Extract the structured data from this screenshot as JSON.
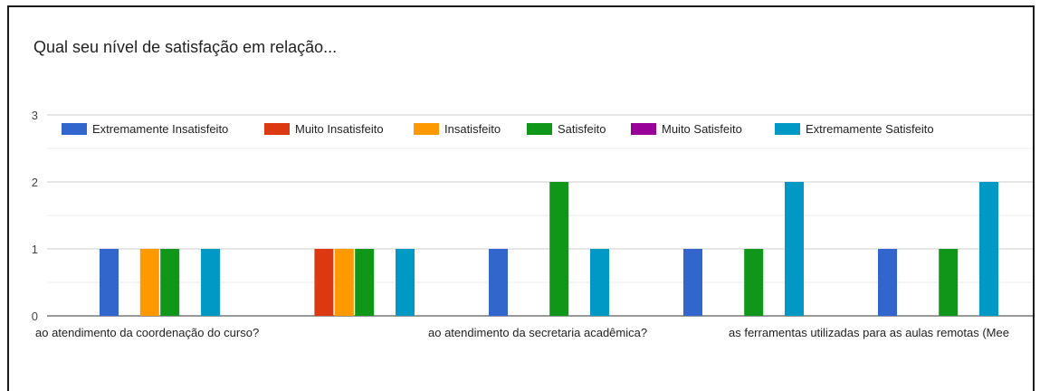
{
  "chart_data": {
    "type": "bar",
    "title": "Qual seu nível de satisfação em relação...",
    "xlabel": "",
    "ylabel": "",
    "ylim": [
      0,
      3
    ],
    "yticks": [
      0,
      1,
      2,
      3
    ],
    "grid": true,
    "legend_position": "top",
    "categories": [
      "ao atendimento da coordenação do curso?",
      "",
      "ao atendimento da secretaria acadêmica?",
      "",
      "as ferramentas utilizadas para as aulas remotas (Meet, Classroom...)?"
    ],
    "category_labels_visible": [
      "ao atendimento da coordenação do curso?",
      "ao atendimento da secretaria acadêmica?",
      "as ferramentas utilizadas para as aulas remotas (Mee"
    ],
    "series": [
      {
        "name": "Extremamente Insatisfeito",
        "color": "#3366cc",
        "values": [
          1,
          0,
          1,
          1,
          1
        ]
      },
      {
        "name": "Muito Insatisfeito",
        "color": "#dc3912",
        "values": [
          0,
          1,
          0,
          0,
          0
        ]
      },
      {
        "name": "Insatisfeito",
        "color": "#ff9900",
        "values": [
          1,
          1,
          0,
          0,
          0
        ]
      },
      {
        "name": "Satisfeito",
        "color": "#109618",
        "values": [
          1,
          1,
          2,
          1,
          1
        ]
      },
      {
        "name": "Muito Satisfeito",
        "color": "#990099",
        "values": [
          0,
          0,
          0,
          0,
          0
        ]
      },
      {
        "name": "Extremamente Satisfeito",
        "color": "#0099c6",
        "values": [
          1,
          1,
          1,
          2,
          2
        ]
      }
    ]
  }
}
